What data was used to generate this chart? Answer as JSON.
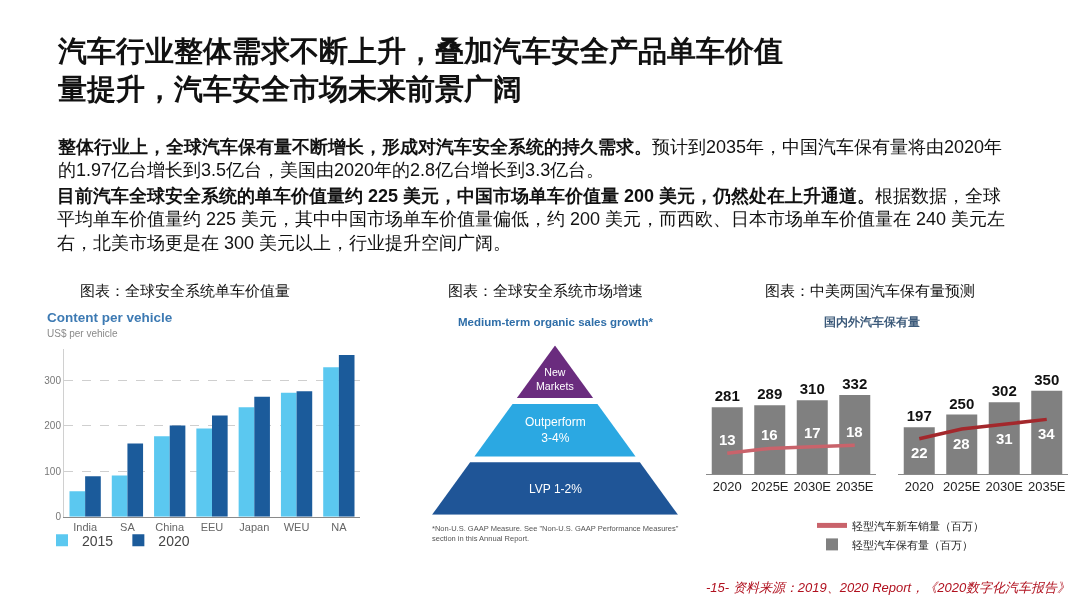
{
  "chart_data": [
    {
      "type": "other",
      "title": "汽车行业整体需求不断上升，叠加汽车安全产品单车价值量提升，汽车安全市场未来前景广阔",
      "annotations": [
        "整体行业上，全球汽车保有量不断增长，形成对汽车安全系统的持久需求。预计到2035年，中国汽车保有量将由2020年的1.97亿台增长到3.5亿台，美国由2020年的2.8亿台增长到3.3亿台。",
        "目前汽车全球安全系统的单车价值量约 225 美元，中国市场单车价值量 200 美元，仍然处在上升通道。根据数据，全球平均单车价值量约 225 美元，其中中国市场单车价值量偏低，约 200 美元，而西欧、日本市场单车价值量在 240 美元左右，北美市场更是在 300 美元以上，行业提升空间广阔。",
        "-15- 资料来源：2019、2020 Report，《2020数字化汽车报告》"
      ]
    },
    {
      "type": "bar",
      "title": "图表：全球安全系统单车价值量",
      "subtitle": "Content per vehicle",
      "ylabel": "US$ per vehicle",
      "categories": [
        "India",
        "SA",
        "China",
        "EEU",
        "Japan",
        "WEU",
        "NA"
      ],
      "series": [
        {
          "name": "2015",
          "color": "#5bc8f0",
          "values": [
            56,
            91,
            177,
            194,
            241,
            273,
            329
          ]
        },
        {
          "name": "2020",
          "color": "#1b5b9b",
          "values": [
            89,
            161,
            201,
            223,
            264,
            276,
            356
          ]
        }
      ],
      "ylim": [
        0,
        370
      ],
      "yticks": [
        0,
        100,
        200,
        300
      ],
      "grid": "y",
      "legend": "bottom left"
    },
    {
      "type": "other",
      "title": "图表：全球安全系统市场增速",
      "subtitle": "Medium-term organic sales growth*",
      "categories": [
        "New\nMarkets",
        "Outperform\n3-4%",
        "LVP 1-2%"
      ],
      "colors": [
        "#6a2c7e",
        "#2ba8e2",
        "#1f5597"
      ],
      "annotations": [
        "*Non-U.S. GAAP Measure. See \"Non-U.S. GAAP Performance Measures\" section in this Annual Report."
      ]
    },
    {
      "type": "bar",
      "title": "图表：中美两国汽车保有量预测",
      "subtitle": "国内外汽车保有量",
      "categories": [
        "2020",
        "2025E",
        "2030E",
        "2035E"
      ],
      "series": [
        {
          "name": "轻型汽车新车销量（百万）",
          "type": "line",
          "axis": "y2",
          "color": "#c9636b",
          "values": [
            13,
            16,
            17,
            18
          ]
        },
        {
          "name": "轻型汽车保有量（百万）",
          "color": "#808080",
          "values": [
            281,
            289,
            310,
            332
          ]
        }
      ],
      "data_labels": true,
      "tick_labels": "x",
      "legend": "bottom"
    },
    {
      "type": "bar",
      "categories": [
        "2020",
        "2025E",
        "2030E",
        "2035E"
      ],
      "series": [
        {
          "type": "line",
          "axis": "y2",
          "color": "#a3282c",
          "values": [
            22,
            28,
            31,
            34
          ]
        },
        {
          "color": "#808080",
          "values": [
            197,
            250,
            302,
            350
          ]
        }
      ],
      "data_labels": true,
      "tick_labels": "x"
    }
  ]
}
